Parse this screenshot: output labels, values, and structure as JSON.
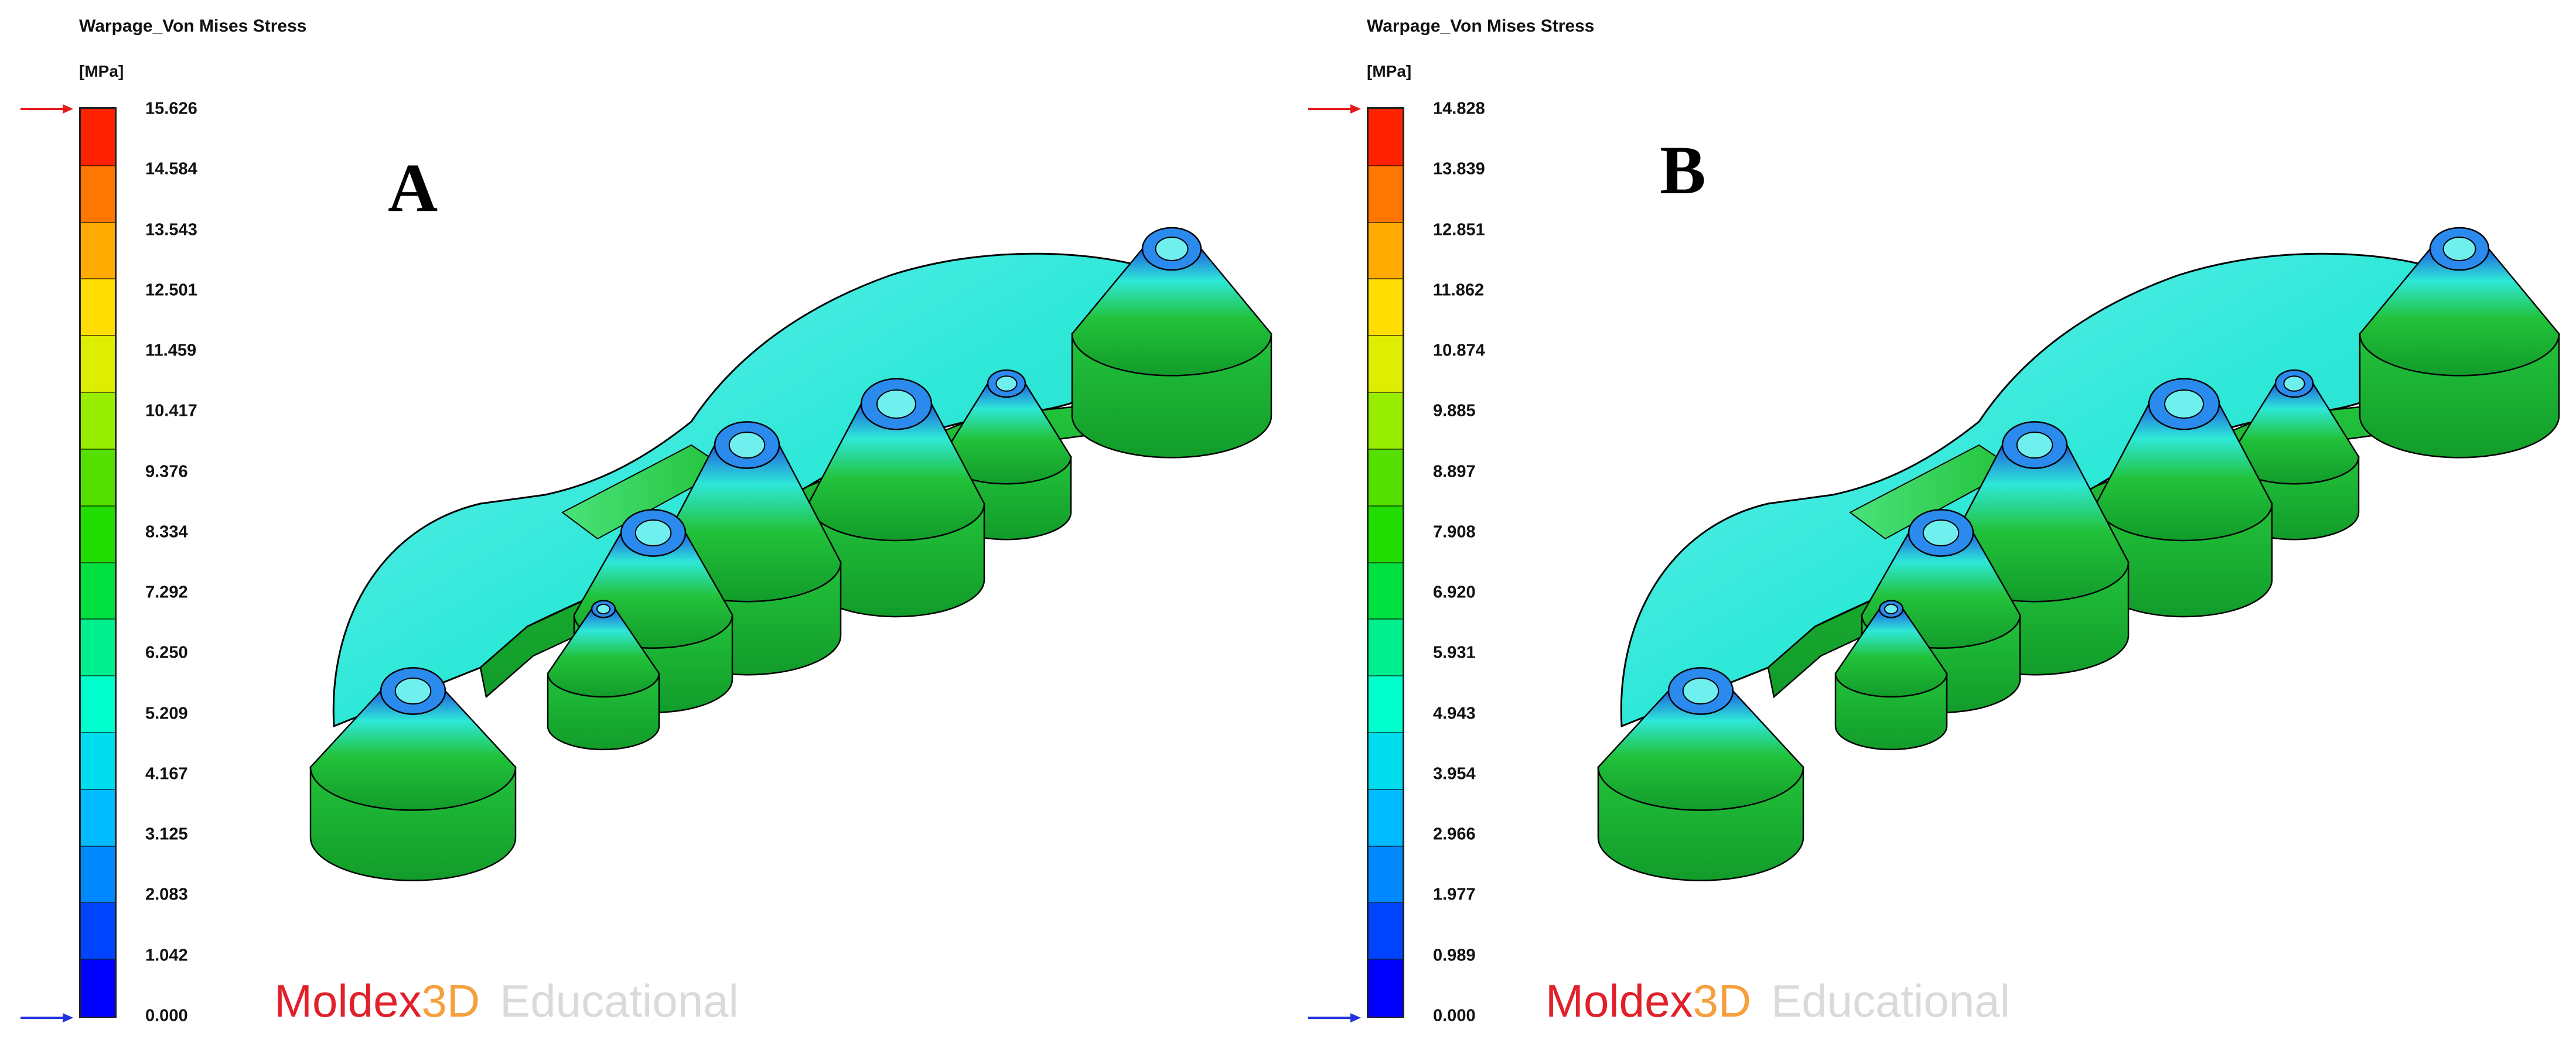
{
  "colorbar_colors": [
    "#0000ff",
    "#0044ff",
    "#0088ff",
    "#00bbff",
    "#00ddee",
    "#00ffcc",
    "#00f090",
    "#00e040",
    "#22dd00",
    "#55e000",
    "#99ee00",
    "#ddee00",
    "#ffdd00",
    "#ffaa00",
    "#ff7700",
    "#ff2200"
  ],
  "arrow_colors": {
    "max": "#e31a1c",
    "min": "#2233dd"
  },
  "model_palette": {
    "base": "#22c23a",
    "dark": "#129c2a",
    "cyan": "#2ee8d8",
    "light": "#6ff0ee",
    "blue": "#1f5fe0",
    "rim": "#2b8aee",
    "edge": "#000000"
  },
  "panels": [
    {
      "id": "A",
      "result_title": "Warpage_Von Mises Stress",
      "unit": "[MPa]",
      "letter": "A",
      "scale_max": 15.626,
      "scale_min": 0.0,
      "tick_labels": [
        "15.626",
        "14.584",
        "13.543",
        "12.501",
        "11.459",
        "10.417",
        "9.376",
        "8.334",
        "7.292",
        "6.250",
        "5.209",
        "4.167",
        "3.125",
        "2.083",
        "1.042",
        "0.000"
      ],
      "watermark": {
        "brand": "Moldex",
        "three_d": "3D",
        "edition": "Educational"
      }
    },
    {
      "id": "B",
      "result_title": "Warpage_Von Mises Stress",
      "unit": "[MPa]",
      "letter": "B",
      "scale_max": 14.828,
      "scale_min": 0.0,
      "tick_labels": [
        "14.828",
        "13.839",
        "12.851",
        "11.862",
        "10.874",
        "9.885",
        "8.897",
        "7.908",
        "6.920",
        "5.931",
        "4.943",
        "3.954",
        "2.966",
        "1.977",
        "0.989",
        "0.000"
      ],
      "watermark": {
        "brand": "Moldex",
        "three_d": "3D",
        "edition": "Educational"
      }
    }
  ]
}
